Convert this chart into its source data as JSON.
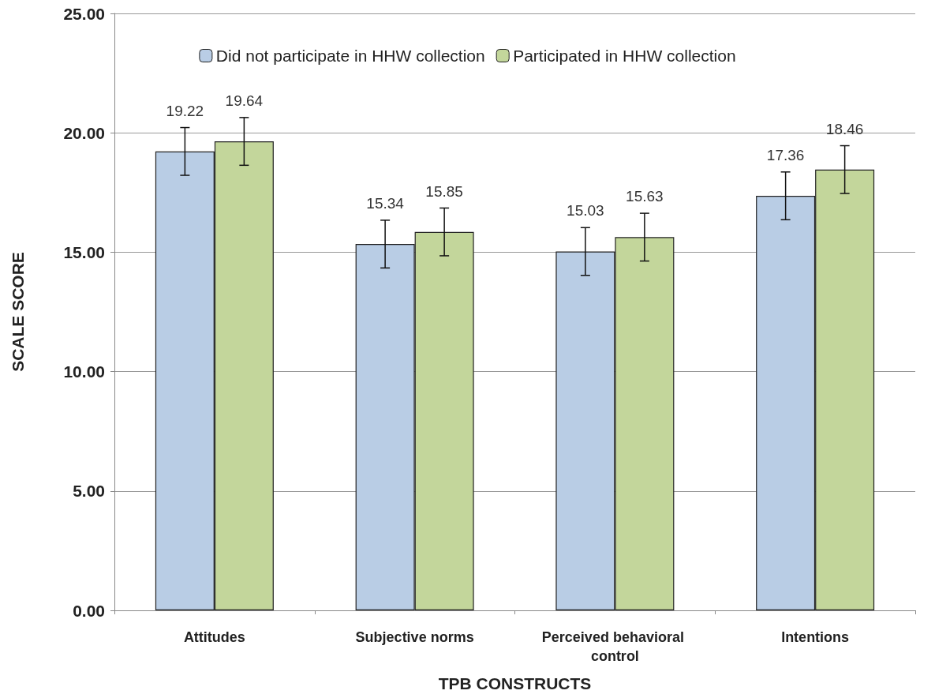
{
  "chart_data": {
    "type": "bar",
    "xlabel": "TPB CONSTRUCTS",
    "ylabel": "SCALE SCORE",
    "categories": [
      "Attitudes",
      "Subjective norms",
      "Perceived behavioral control",
      "Intentions"
    ],
    "series": [
      {
        "name": "Did not participate in HHW collection",
        "color": "#b9cde5",
        "values": [
          19.22,
          15.34,
          15.03,
          17.36
        ],
        "errors": [
          1,
          1,
          1,
          1
        ]
      },
      {
        "name": "Participated in HHW collection",
        "color": "#c3d69b",
        "values": [
          19.64,
          15.85,
          15.63,
          18.46
        ],
        "errors": [
          1,
          1,
          1,
          1
        ]
      }
    ],
    "ylim": [
      0,
      25
    ],
    "yticks": [
      {
        "value": 0,
        "label": "0.00"
      },
      {
        "value": 5,
        "label": "5.00"
      },
      {
        "value": 10,
        "label": "10.00"
      },
      {
        "value": 15,
        "label": "15.00"
      },
      {
        "value": 20,
        "label": "20.00"
      },
      {
        "value": 25,
        "label": "25.00"
      }
    ],
    "grid": "y",
    "legend": "top",
    "data_labels": true
  }
}
